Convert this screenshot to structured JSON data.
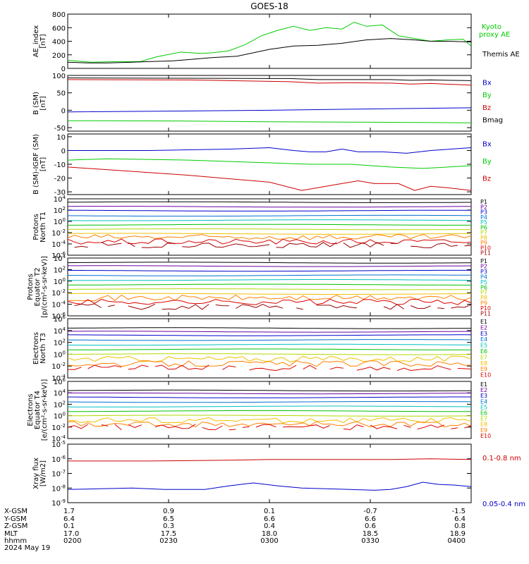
{
  "title": "GOES-18",
  "colors": {
    "black": "#000000",
    "red": "#cc0000",
    "green": "#00cc00",
    "blue": "#0000cc",
    "P1": "#000000",
    "P2": "#6a00a0",
    "P3": "#0000cc",
    "P4": "#0070d0",
    "P5": "#00c0c0",
    "P6": "#00c000",
    "P7": "#b0d800",
    "P8": "#f0c000",
    "P9": "#ff8000",
    "P10": "#dd0000",
    "P11": "#990000"
  },
  "chart_data": [
    {
      "type": "line",
      "name": "ae",
      "ylabel": "AE_index\n[nT]",
      "yticks": [
        "800",
        "600",
        "400",
        "200",
        "0"
      ],
      "ylim": [
        0,
        800
      ],
      "legend": [
        {
          "label": "Kyoto\nproxy AE",
          "color": "green"
        },
        {
          "label": "Themis AE",
          "color": "black"
        }
      ],
      "series": [
        {
          "name": "Kyoto proxy AE",
          "color": "green",
          "x": [
            0,
            0.06,
            0.12,
            0.18,
            0.22,
            0.28,
            0.33,
            0.36,
            0.4,
            0.44,
            0.48,
            0.52,
            0.56,
            0.6,
            0.64,
            0.68,
            0.71,
            0.74,
            0.78,
            0.82,
            0.86,
            0.9,
            0.94,
            0.98,
            1
          ],
          "y": [
            120,
            90,
            100,
            100,
            170,
            240,
            220,
            230,
            260,
            350,
            480,
            560,
            620,
            560,
            600,
            580,
            680,
            620,
            640,
            480,
            440,
            400,
            420,
            430,
            330
          ]
        },
        {
          "name": "Themis AE",
          "color": "black",
          "x": [
            0,
            0.05,
            0.1,
            0.16,
            0.2,
            0.26,
            0.3,
            0.36,
            0.42,
            0.46,
            0.5,
            0.56,
            0.62,
            0.68,
            0.74,
            0.8,
            0.86,
            0.9,
            0.94,
            1
          ],
          "y": [
            90,
            80,
            80,
            90,
            100,
            110,
            130,
            160,
            180,
            230,
            280,
            330,
            340,
            370,
            420,
            440,
            420,
            400,
            400,
            390
          ]
        }
      ]
    },
    {
      "type": "line",
      "name": "bsm",
      "ylabel": "B (SM)\n[nT]",
      "yticks": [
        "100",
        "50",
        "0",
        "-50"
      ],
      "ylim": [
        -60,
        100
      ],
      "legend": [
        {
          "label": "Bx",
          "color": "blue"
        },
        {
          "label": "By",
          "color": "green"
        },
        {
          "label": "Bz",
          "color": "red"
        },
        {
          "label": "Bmag",
          "color": "black"
        }
      ],
      "series": [
        {
          "name": "Bmag",
          "color": "black",
          "x": [
            0,
            0.3,
            0.55,
            0.62,
            0.7,
            0.8,
            0.85,
            0.9,
            1
          ],
          "y": [
            93,
            92,
            91,
            88,
            88,
            88,
            86,
            87,
            85
          ]
        },
        {
          "name": "Bz",
          "color": "red",
          "x": [
            0,
            0.3,
            0.55,
            0.62,
            0.7,
            0.8,
            0.85,
            0.9,
            1
          ],
          "y": [
            88,
            87,
            82,
            78,
            79,
            78,
            75,
            77,
            72
          ]
        },
        {
          "name": "Bx",
          "color": "blue",
          "x": [
            0,
            0.3,
            0.5,
            0.7,
            0.85,
            1
          ],
          "y": [
            -5,
            -2,
            0,
            3,
            5,
            7
          ]
        },
        {
          "name": "By",
          "color": "green",
          "x": [
            0,
            0.3,
            0.5,
            0.7,
            1
          ],
          "y": [
            -30,
            -31,
            -33,
            -34,
            -36
          ]
        }
      ]
    },
    {
      "type": "line",
      "name": "bigrf",
      "ylabel": "B (SM)-IGRF (SM)\n[nT]",
      "yticks": [
        "10",
        "0",
        "-10",
        "-20",
        "-30"
      ],
      "ylim": [
        -32,
        12
      ],
      "legend": [
        {
          "label": "Bx",
          "color": "blue"
        },
        {
          "label": "By",
          "color": "green"
        },
        {
          "label": "Bz",
          "color": "red"
        }
      ],
      "series": [
        {
          "name": "Bx",
          "color": "blue",
          "x": [
            0,
            0.2,
            0.4,
            0.5,
            0.56,
            0.6,
            0.64,
            0.68,
            0.72,
            0.78,
            0.84,
            0.9,
            1
          ],
          "y": [
            0,
            0,
            1,
            2,
            0,
            -1,
            -1,
            1,
            -1,
            -1,
            -2,
            0,
            2
          ]
        },
        {
          "name": "By",
          "color": "green",
          "x": [
            0,
            0.1,
            0.3,
            0.5,
            0.6,
            0.7,
            0.8,
            0.88,
            1
          ],
          "y": [
            -7,
            -6,
            -7,
            -9,
            -10,
            -10,
            -12,
            -13,
            -11
          ]
        },
        {
          "name": "Bz",
          "color": "red",
          "x": [
            0,
            0.1,
            0.3,
            0.5,
            0.58,
            0.62,
            0.66,
            0.72,
            0.76,
            0.82,
            0.86,
            0.9,
            0.94,
            1
          ],
          "y": [
            -12,
            -14,
            -18,
            -23,
            -29,
            -27,
            -25,
            -22,
            -24,
            -24,
            -29,
            -26,
            -27,
            -29
          ]
        }
      ]
    },
    {
      "type": "line",
      "name": "protons-t1",
      "log": true,
      "ylabel": "Protons\nNorth T1",
      "yticks": [
        "10^4",
        "10^2",
        "10^0",
        "10^-2",
        "10^-4",
        "10^-6"
      ],
      "ylim": [
        -6,
        4
      ],
      "legend": [
        "P1",
        "P2",
        "P3",
        "P4",
        "P5",
        "P6",
        "P7",
        "P8",
        "P9",
        "P10",
        "P11"
      ],
      "levels": [
        3.4,
        2.6,
        1.9,
        1.0,
        0.2,
        -0.6,
        -1.4,
        -2.2,
        -2.8,
        -3.6,
        -4.2
      ]
    },
    {
      "type": "line",
      "name": "protons-t2",
      "log": true,
      "ylabel": "Protons\nEquator T2\n[p/(cm²-s-sr-keV)]",
      "yticks": [
        "10^4",
        "10^2",
        "10^0",
        "10^-2",
        "10^-4",
        "10^-6"
      ],
      "ylim": [
        -6,
        4
      ],
      "legend": [
        "P1",
        "P2",
        "P3",
        "P4",
        "P5",
        "P6",
        "P7",
        "P8",
        "P9",
        "P10",
        "P11"
      ],
      "levels": [
        3.2,
        2.6,
        1.8,
        1.0,
        0.2,
        -0.6,
        -1.4,
        -2.2,
        -2.9,
        -3.6,
        -4.4
      ]
    },
    {
      "type": "line",
      "name": "electrons-t3",
      "log": true,
      "ylabel": "Electrons\nNorth T3",
      "yticks": [
        "10^6",
        "10^4",
        "10^2",
        "10^0",
        "10^-2",
        "10^-4"
      ],
      "ylim": [
        -4,
        6
      ],
      "legend": [
        "E1",
        "E2",
        "E3",
        "E4",
        "E5",
        "E6",
        "E7",
        "E8",
        "E9",
        "E10"
      ],
      "levels": [
        4.4,
        3.8,
        3.2,
        2.4,
        1.6,
        0.8,
        0.0,
        -0.8,
        -1.6,
        -2.3
      ]
    },
    {
      "type": "line",
      "name": "electrons-t4",
      "log": true,
      "ylabel": "Electrons\nEquator T4\n[e/(cm²-s-sr-keV)]",
      "yticks": [
        "10^6",
        "10^4",
        "10^2",
        "10^0",
        "10^-2",
        "10^-4"
      ],
      "ylim": [
        -4,
        6
      ],
      "legend": [
        "E1",
        "E2",
        "E3",
        "E4",
        "E5",
        "E6",
        "E7",
        "E8",
        "E9",
        "E10"
      ],
      "levels": [
        4.4,
        3.9,
        3.2,
        2.4,
        1.6,
        0.8,
        0.0,
        -0.8,
        -1.5,
        -2.0
      ]
    },
    {
      "type": "line",
      "name": "xray",
      "log": true,
      "ylabel": "Xray flux\n[W/m2]",
      "yticks": [
        "10^-5",
        "10^-6",
        "10^-7",
        "10^-8",
        "10^-9"
      ],
      "ylim": [
        -9,
        -5
      ],
      "legend": [
        {
          "label": "0.1-0.8 nm",
          "color": "red"
        },
        {
          "label": "0.05-0.4 nm",
          "color": "blue"
        }
      ],
      "series": [
        {
          "name": "0.1-0.8 nm",
          "color": "red",
          "x": [
            0,
            0.2,
            0.4,
            0.5,
            0.6,
            0.8,
            0.9,
            1
          ],
          "y": [
            -6.15,
            -6.15,
            -6.1,
            -6.05,
            -6.05,
            -6.05,
            -6.0,
            -6.05
          ]
        },
        {
          "name": "0.05-0.4 nm",
          "color": "blue",
          "x": [
            0,
            0.08,
            0.16,
            0.24,
            0.34,
            0.4,
            0.46,
            0.52,
            0.58,
            0.64,
            0.7,
            0.76,
            0.8,
            0.84,
            0.88,
            0.92,
            0.96,
            1
          ],
          "y": [
            -8.1,
            -8.05,
            -8.0,
            -8.1,
            -8.1,
            -7.85,
            -7.65,
            -7.85,
            -8.0,
            -8.05,
            -8.1,
            -8.15,
            -8.1,
            -7.9,
            -7.6,
            -7.75,
            -7.8,
            -7.9
          ]
        }
      ]
    }
  ],
  "ephemeris": {
    "labels": [
      "X-GSM",
      "Y-GSM",
      "Z-GSM",
      "MLT",
      "hhmm"
    ],
    "date": "2024 May 19",
    "columns": [
      [
        "1.7",
        "6.4",
        "0.1",
        "17.0",
        "0200"
      ],
      [
        "0.9",
        "6.5",
        "0.3",
        "17.5",
        "0230"
      ],
      [
        "0.1",
        "6.6",
        "0.4",
        "18.0",
        "0300"
      ],
      [
        "-0.7",
        "6.6",
        "0.6",
        "18.5",
        "0330"
      ],
      [
        "-1.5",
        "6.4",
        "0.8",
        "18.9",
        "0400"
      ]
    ]
  }
}
